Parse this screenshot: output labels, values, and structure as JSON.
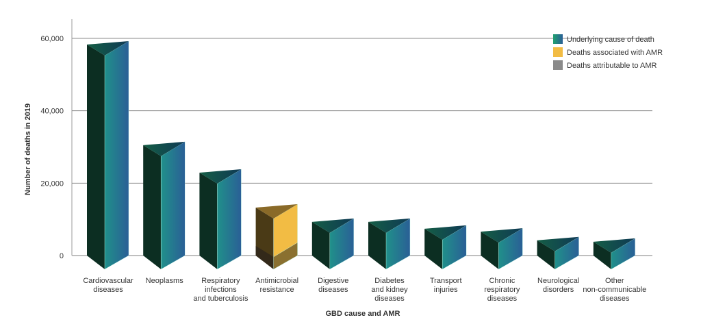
{
  "chart_data": {
    "type": "bar",
    "title": "",
    "xlabel": "GBD cause and AMR",
    "ylabel": "Number of deaths in 2019",
    "ylim": [
      0,
      60000
    ],
    "yticks": [
      0,
      20000,
      40000,
      60000
    ],
    "ytick_labels": [
      "0",
      "20,000",
      "40,000",
      "60,000"
    ],
    "grid": true,
    "legend_position": "top-right",
    "legend": [
      "Underlying cause of death",
      "Deaths associated with AMR",
      "Deaths attributable to AMR"
    ],
    "categories": [
      [
        "Cardiovascular",
        "diseases"
      ],
      [
        "Neoplasms"
      ],
      [
        "Respiratory",
        "infections",
        "and tuberculosis"
      ],
      [
        "Antimicrobial",
        "resistance"
      ],
      [
        "Digestive",
        "diseases"
      ],
      [
        "Diabetes",
        "and kidney",
        "diseases"
      ],
      [
        "Transport",
        "injuries"
      ],
      [
        "Chronic",
        "respiratory",
        "diseases"
      ],
      [
        "Neurological",
        "disorders"
      ],
      [
        "Other",
        "non-communicable",
        "diseases"
      ]
    ],
    "series": [
      {
        "name": "Underlying cause of death",
        "values": [
          58300,
          30500,
          22900,
          null,
          9300,
          9300,
          7400,
          6600,
          4200,
          3800
        ]
      },
      {
        "name": "Deaths associated with AMR",
        "values": [
          null,
          null,
          null,
          13250,
          null,
          null,
          null,
          null,
          null,
          null
        ]
      },
      {
        "name": "Deaths attributable to AMR",
        "values": [
          null,
          null,
          null,
          2650,
          null,
          null,
          null,
          null,
          null,
          null
        ]
      }
    ]
  },
  "colors": {
    "teal": "#20908a",
    "blue": "#2a5f96",
    "dark_green": "#0c2e22",
    "amr_yellow": "#f2bc44",
    "amr_dark": "#4a3a16",
    "attr_gray": "#8a8a8a"
  }
}
